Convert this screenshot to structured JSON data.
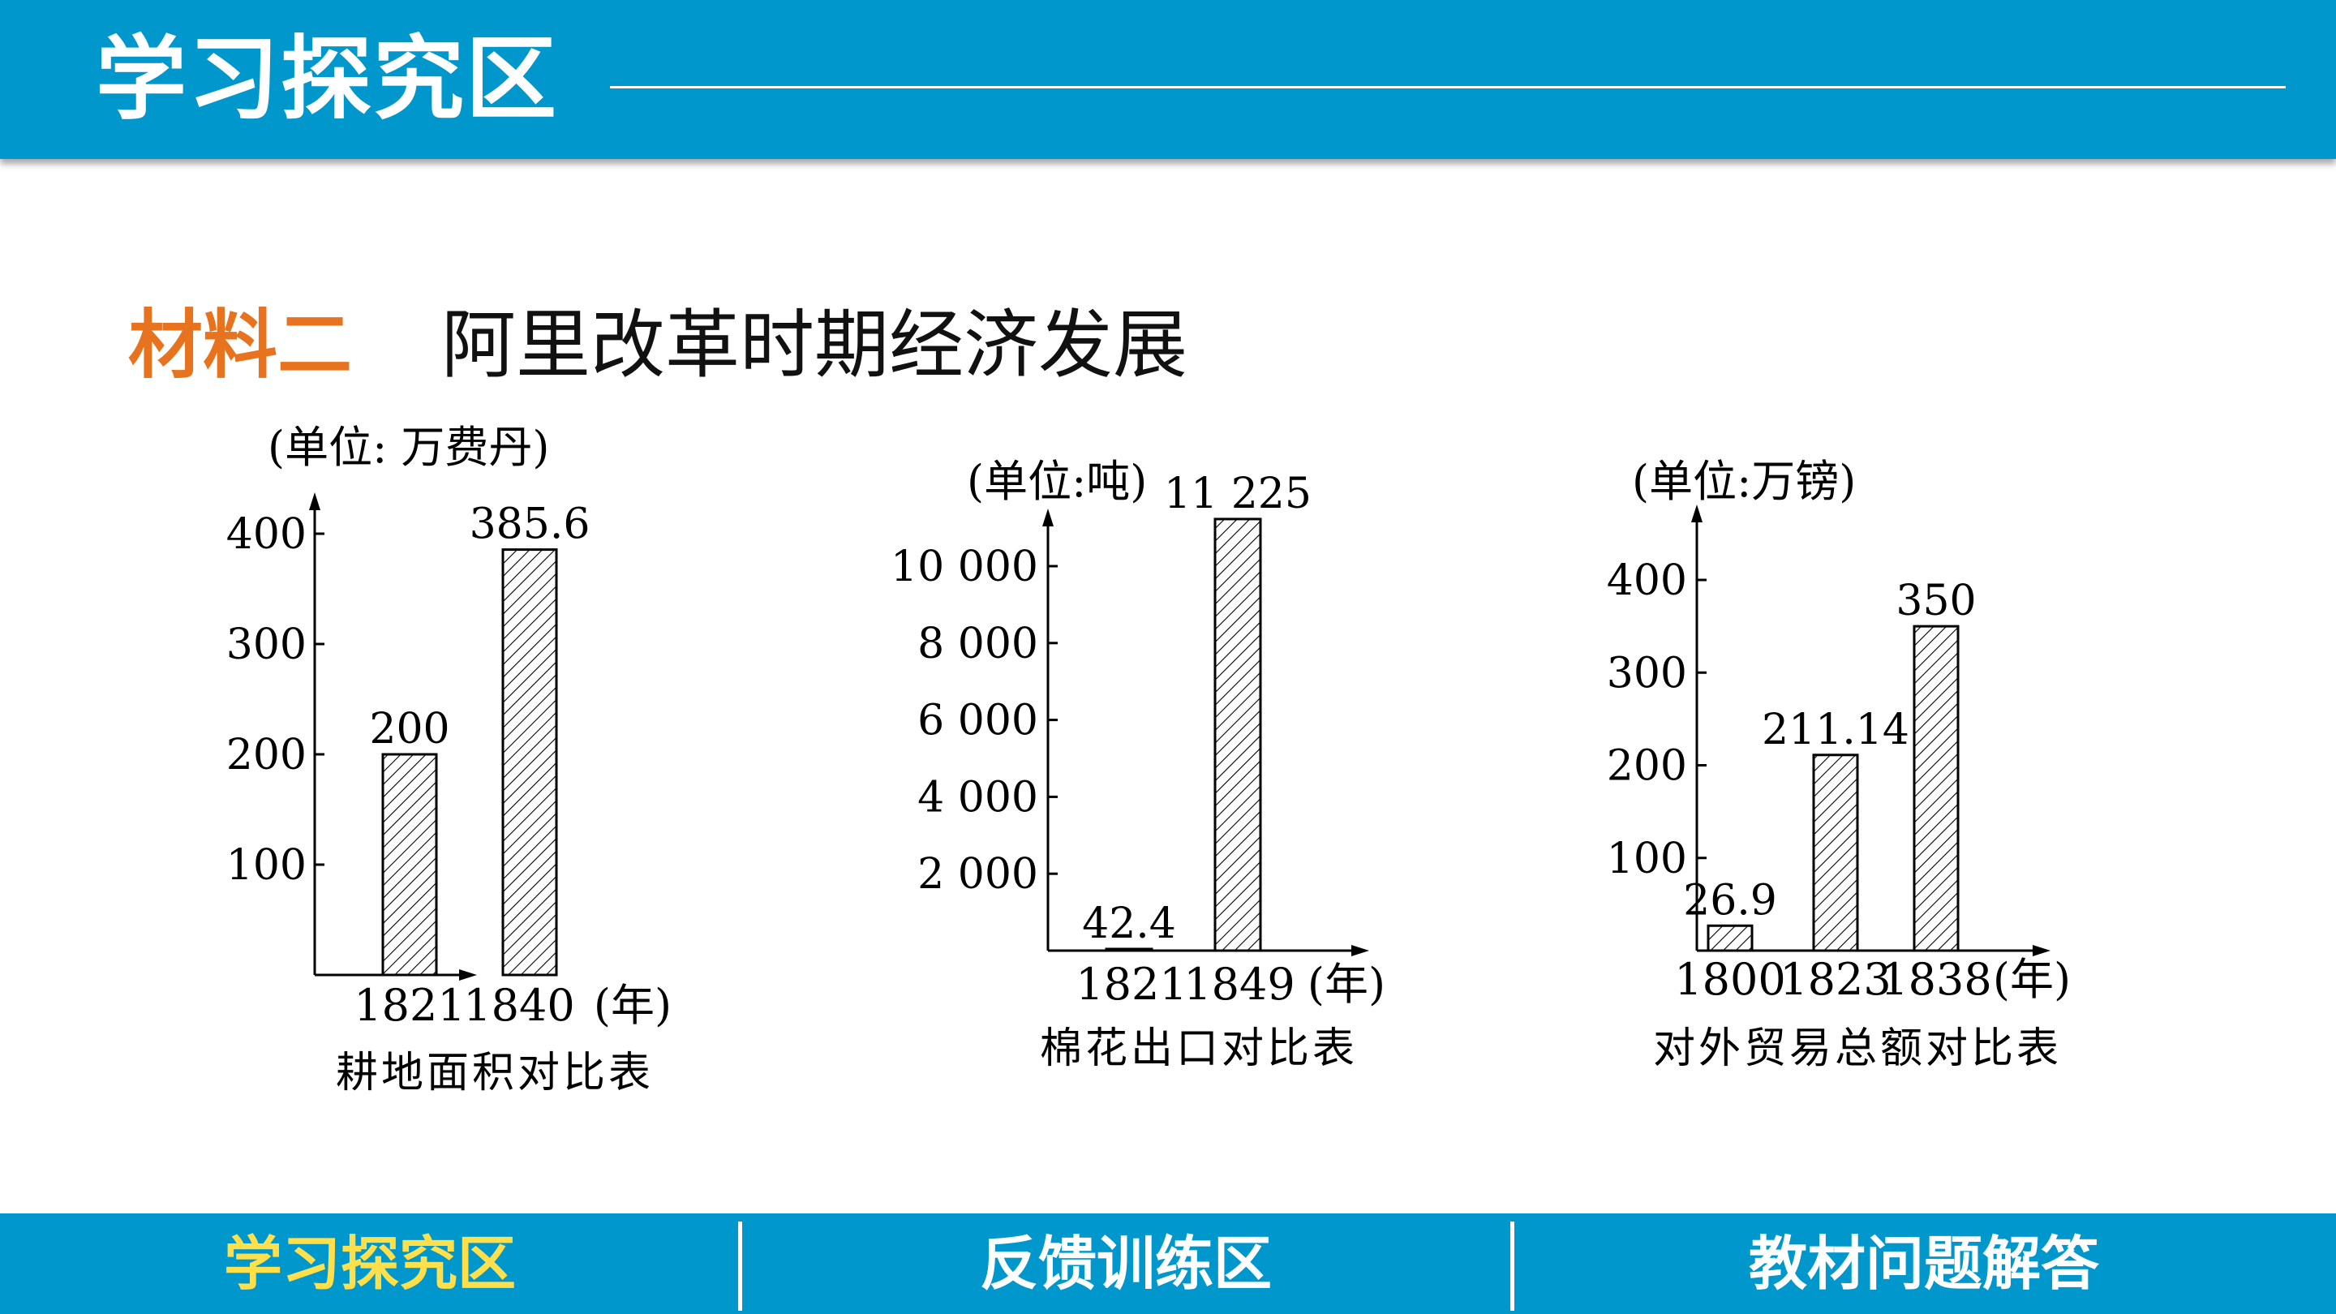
{
  "header": {
    "title": "学习探究区"
  },
  "material": {
    "label": "材料二",
    "title": "阿里改革时期经济发展"
  },
  "footer": {
    "tabs": [
      {
        "label": "学习探究区",
        "active": true
      },
      {
        "label": "反馈训练区",
        "active": false
      },
      {
        "label": "教材问题解答",
        "active": false
      }
    ]
  },
  "colors": {
    "header_bg": "#0097cd",
    "accent": "#e8731e",
    "active_tab": "#ffe04a"
  },
  "chart_data": [
    {
      "type": "bar",
      "title": "耕地面积对比表",
      "ylabel": "(单位: 万费丹)",
      "xlabel": "(年)",
      "categories": [
        "1821",
        "1840"
      ],
      "values": [
        200,
        385.6
      ],
      "value_labels": [
        "200",
        "385.6"
      ],
      "yticks": [
        100,
        200,
        300,
        400
      ],
      "ytick_labels": [
        "100",
        "200",
        "300",
        "400"
      ],
      "ylim": [
        0,
        400
      ],
      "pattern": "hatched"
    },
    {
      "type": "bar",
      "title": "棉花出口对比表",
      "ylabel": "(单位:吨)",
      "xlabel": "(年)",
      "categories": [
        "1821",
        "1849"
      ],
      "values": [
        42.4,
        11225
      ],
      "value_labels": [
        "42.4",
        "11 225"
      ],
      "yticks": [
        2000,
        4000,
        6000,
        8000,
        10000
      ],
      "ytick_labels": [
        "2 000",
        "4 000",
        "6 000",
        "8 000",
        "10 000"
      ],
      "ylim": [
        0,
        10000
      ],
      "pattern": "hatched"
    },
    {
      "type": "bar",
      "title": "对外贸易总额对比表",
      "ylabel": "(单位:万镑)",
      "xlabel": "(年)",
      "categories": [
        "1800",
        "1823",
        "1838"
      ],
      "values": [
        26.9,
        211.14,
        350
      ],
      "value_labels": [
        "26.9",
        "211.14",
        "350"
      ],
      "yticks": [
        100,
        200,
        300,
        400
      ],
      "ytick_labels": [
        "100",
        "200",
        "300",
        "400"
      ],
      "ylim": [
        0,
        400
      ],
      "pattern": "hatched"
    }
  ]
}
